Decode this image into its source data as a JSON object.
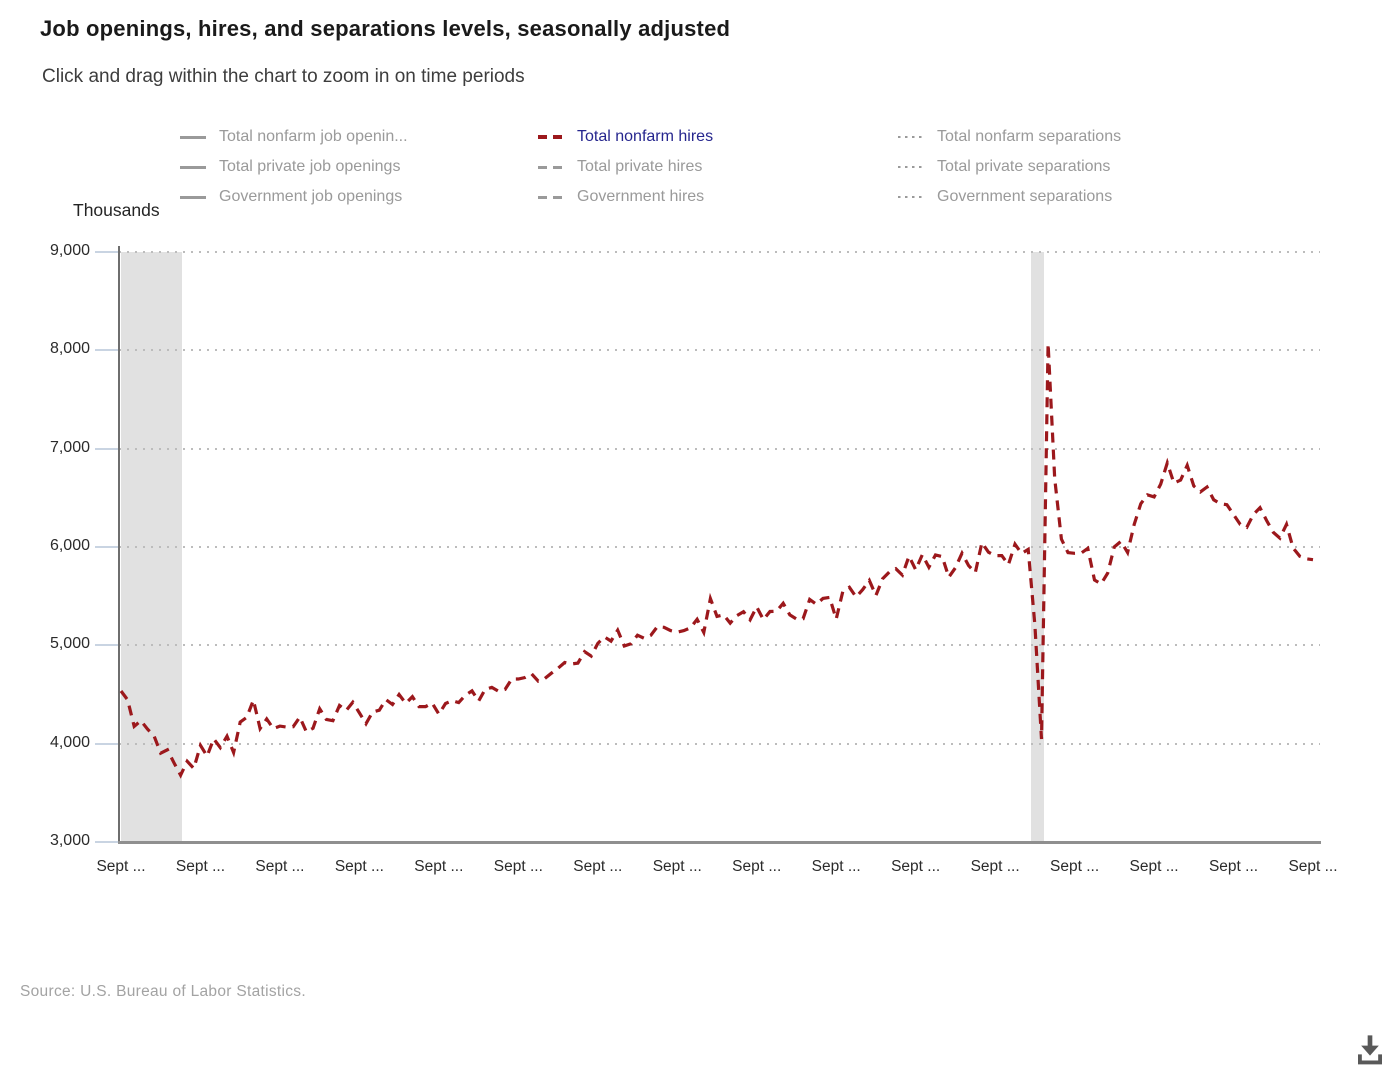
{
  "header": {
    "title": "Job openings, hires, and separations levels, seasonally adjusted",
    "subtitle": "Click and drag within the chart to zoom in on time periods"
  },
  "legend": {
    "columns": [
      {
        "items": [
          {
            "id": "total-nonfarm-job-openings",
            "label": "Total nonfarm job openin...",
            "swatch": "solid",
            "active": false
          },
          {
            "id": "total-private-job-openings",
            "label": "Total private job openings",
            "swatch": "solid",
            "active": false
          },
          {
            "id": "government-job-openings",
            "label": "Government job openings",
            "swatch": "solid",
            "active": false
          }
        ]
      },
      {
        "items": [
          {
            "id": "total-nonfarm-hires",
            "label": "Total nonfarm hires",
            "swatch": "dashed",
            "active": true
          },
          {
            "id": "total-private-hires",
            "label": "Total private hires",
            "swatch": "dashed",
            "active": false
          },
          {
            "id": "government-hires",
            "label": "Government hires",
            "swatch": "dashed",
            "active": false
          }
        ]
      },
      {
        "items": [
          {
            "id": "total-nonfarm-separations",
            "label": "Total nonfarm separations",
            "swatch": "dotted",
            "active": false
          },
          {
            "id": "total-private-separations",
            "label": "Total private separations",
            "swatch": "dotted",
            "active": false
          },
          {
            "id": "government-separations",
            "label": "Government separations",
            "swatch": "dotted",
            "active": false
          }
        ]
      }
    ]
  },
  "axis": {
    "unit_label": "Thousands",
    "y_ticks": [
      {
        "label": "9,000",
        "value": 9000
      },
      {
        "label": "8,000",
        "value": 8000
      },
      {
        "label": "7,000",
        "value": 7000
      },
      {
        "label": "6,000",
        "value": 6000
      },
      {
        "label": "5,000",
        "value": 5000
      },
      {
        "label": "4,000",
        "value": 4000
      },
      {
        "label": "3,000",
        "value": 3000
      }
    ],
    "x_tick_labels": [
      "Sept ...",
      "Sept ...",
      "Sept ...",
      "Sept ...",
      "Sept ...",
      "Sept ...",
      "Sept ...",
      "Sept ...",
      "Sept ...",
      "Sept ...",
      "Sept ...",
      "Sept ...",
      "Sept ...",
      "Sept ...",
      "Sept ...",
      "Sept ..."
    ]
  },
  "colors": {
    "series_active": "#9c181c",
    "legend_active_text": "#26268e",
    "legend_inactive": "#9a9a9a",
    "recession_band": "#e1e1e1",
    "gridline": "#bcbcbc",
    "axis_line": "#8f8f8f"
  },
  "footer": {
    "source": "Source: U.S. Bureau of Labor Statistics."
  },
  "icons": {
    "download": "download-icon"
  },
  "chart_data": {
    "type": "line",
    "title": "Job openings, hires, and separations levels, seasonally adjusted",
    "ylabel": "Thousands",
    "ylim": [
      3000,
      9000
    ],
    "y_tick_interval": 1000,
    "grid": "dotted-horizontal",
    "legend_position": "top",
    "frequency": "monthly",
    "x_range": {
      "start": "Sep 2008",
      "end": "Sep 2023"
    },
    "x_tick_labels": [
      "Sept ...",
      "Sept ...",
      "Sept ...",
      "Sept ...",
      "Sept ...",
      "Sept ...",
      "Sept ...",
      "Sept ...",
      "Sept ...",
      "Sept ...",
      "Sept ...",
      "Sept ...",
      "Sept ...",
      "Sept ...",
      "Sept ...",
      "Sept ..."
    ],
    "recession_bands": [
      {
        "from_month_index": 0,
        "to_month_index": 9.2
      },
      {
        "from_month_index": 137.4,
        "to_month_index": 139.4
      }
    ],
    "series": [
      {
        "name": "Total nonfarm hires",
        "color": "#9c181c",
        "dash": "dashed",
        "start_month": "2008-09",
        "values": [
          4536,
          4446,
          4176,
          4234,
          4148,
          4078,
          3903,
          3938,
          3805,
          3679,
          3821,
          3748,
          3982,
          3874,
          4049,
          3960,
          4076,
          3910,
          4219,
          4268,
          4443,
          4153,
          4251,
          4153,
          4179,
          4168,
          4173,
          4270,
          4120,
          4156,
          4355,
          4247,
          4234,
          4388,
          4337,
          4421,
          4313,
          4203,
          4322,
          4340,
          4448,
          4398,
          4500,
          4410,
          4478,
          4377,
          4377,
          4413,
          4300,
          4408,
          4437,
          4418,
          4493,
          4537,
          4433,
          4553,
          4572,
          4533,
          4552,
          4657,
          4658,
          4673,
          4711,
          4636,
          4663,
          4717,
          4767,
          4825,
          4810,
          4819,
          4935,
          4890,
          5020,
          5086,
          5043,
          5154,
          4993,
          5016,
          5103,
          5072,
          5102,
          5190,
          5183,
          5150,
          5134,
          5150,
          5178,
          5265,
          5132,
          5475,
          5294,
          5309,
          5226,
          5302,
          5342,
          5260,
          5392,
          5261,
          5344,
          5347,
          5427,
          5311,
          5268,
          5271,
          5466,
          5417,
          5477,
          5487,
          5267,
          5547,
          5590,
          5492,
          5567,
          5660,
          5507,
          5677,
          5745,
          5779,
          5714,
          5906,
          5768,
          5922,
          5795,
          5919,
          5902,
          5693,
          5788,
          5937,
          5811,
          5740,
          6044,
          5947,
          5913,
          5913,
          5821,
          6028,
          5934,
          5976,
          5205,
          4047,
          8069,
          6697,
          6080,
          5943,
          5936,
          5938,
          5986,
          5664,
          5625,
          5735,
          6001,
          6058,
          5944,
          6230,
          6440,
          6530,
          6510,
          6640,
          6855,
          6650,
          6680,
          6830,
          6620,
          6560,
          6610,
          6480,
          6440,
          6430,
          6330,
          6230,
          6200,
          6330,
          6400,
          6270,
          6150,
          6090,
          6230,
          5990,
          5905,
          5880,
          5871
        ]
      }
    ]
  }
}
